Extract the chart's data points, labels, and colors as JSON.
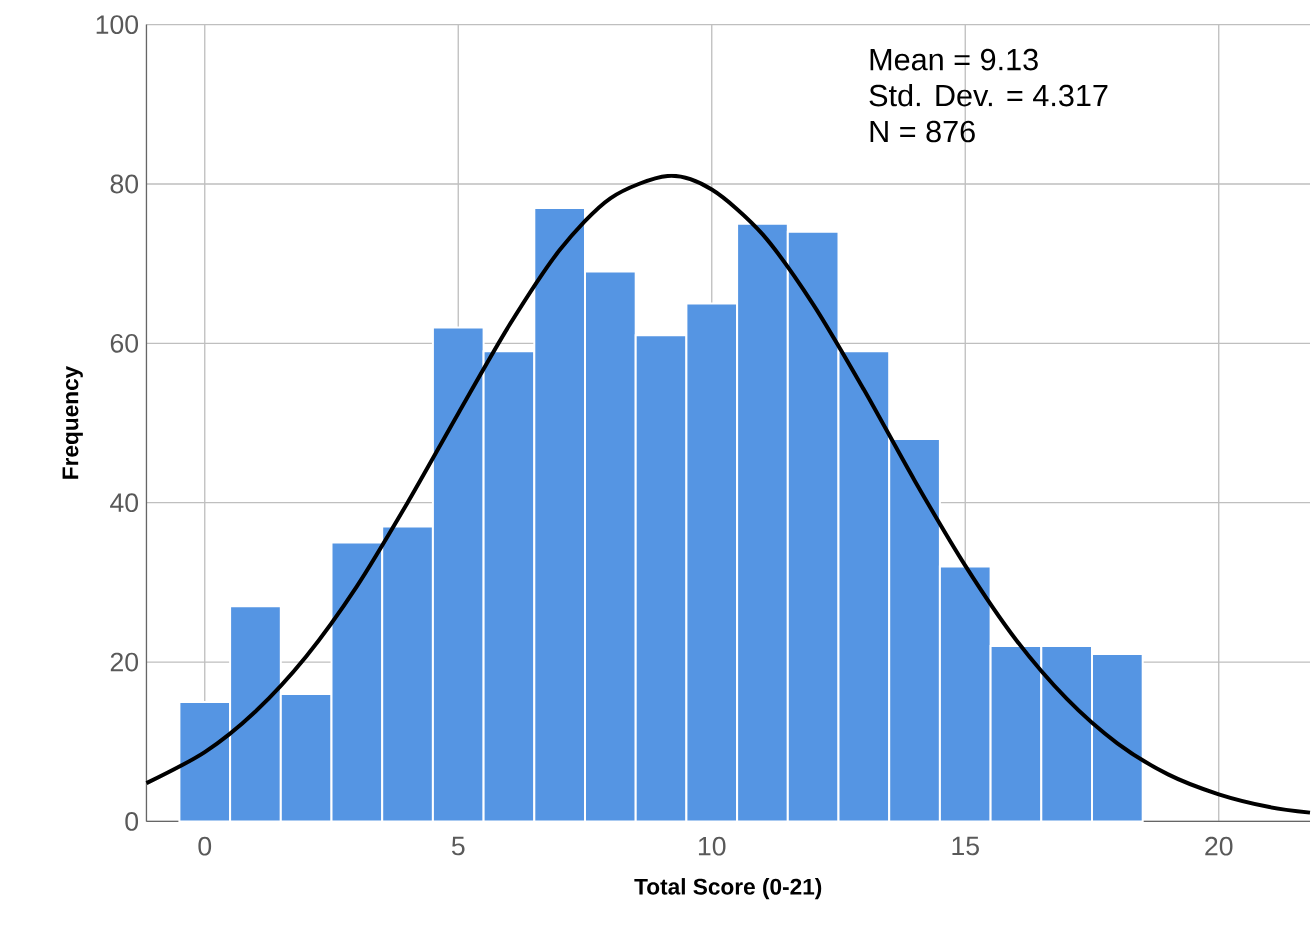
{
  "chart_data": {
    "type": "histogram",
    "xlabel": "Total Score (0-21)",
    "ylabel": "Frequency",
    "annotations": [
      "Mean = 9.13",
      "Std. Dev. = 4.317",
      "N = 876"
    ],
    "bins": [
      -0.5,
      0.5,
      1.5,
      2.5,
      3.5,
      4.5,
      5.5,
      6.5,
      7.5,
      8.5,
      9.5,
      10.5,
      11.5,
      12.5,
      13.5,
      14.5,
      15.5,
      16.5,
      17.5,
      18.5
    ],
    "values": [
      15,
      27,
      16,
      35,
      37,
      62,
      59,
      77,
      69,
      61,
      65,
      75,
      74,
      59,
      48,
      32,
      22,
      22,
      21
    ],
    "color": "#5595e3",
    "series": [
      {
        "type": "line",
        "color": "#000000",
        "x": [
          -1.15,
          0,
          1,
          2,
          3,
          4,
          5,
          6,
          7,
          8,
          9.13,
          10,
          11,
          12,
          13,
          14,
          15,
          16,
          17,
          18,
          19,
          20,
          21,
          21.8
        ],
        "values": [
          4.8,
          8.7,
          13.8,
          20.7,
          29.5,
          40.0,
          51.2,
          62.2,
          71.7,
          78.2,
          81.0,
          79.3,
          73.7,
          64.9,
          54.2,
          42.8,
          32.1,
          22.8,
          15.4,
          9.8,
          5.9,
          3.4,
          1.8,
          1.1
        ]
      }
    ],
    "xlim": [
      -1.15,
      21.8
    ],
    "ylim": [
      0,
      100
    ],
    "xticks": [
      0,
      5,
      10,
      15,
      20
    ],
    "yticks": [
      0,
      20,
      40,
      60,
      80,
      100
    ],
    "grid": true
  }
}
